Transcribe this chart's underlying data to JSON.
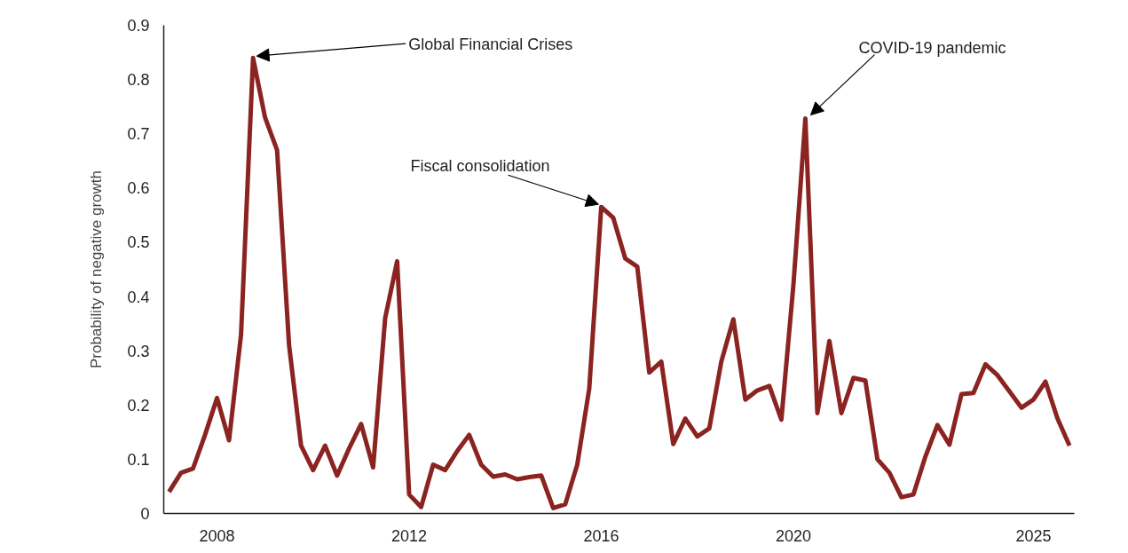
{
  "chart_data": {
    "type": "line",
    "ylabel": "Probability of negative growth",
    "x": [
      2007,
      2007.25,
      2007.5,
      2007.75,
      2008,
      2008.25,
      2008.5,
      2008.75,
      2009,
      2009.25,
      2009.5,
      2009.75,
      2010,
      2010.25,
      2010.5,
      2010.75,
      2011,
      2011.25,
      2011.5,
      2011.75,
      2012,
      2012.25,
      2012.5,
      2012.75,
      2013,
      2013.25,
      2013.5,
      2013.75,
      2014,
      2014.25,
      2014.5,
      2014.75,
      2015,
      2015.25,
      2015.5,
      2015.75,
      2016,
      2016.25,
      2016.5,
      2016.75,
      2017,
      2017.25,
      2017.5,
      2017.75,
      2018,
      2018.25,
      2018.5,
      2018.75,
      2019,
      2019.25,
      2019.5,
      2019.75,
      2020,
      2020.25,
      2020.5,
      2020.75,
      2021,
      2021.25,
      2021.5,
      2021.75,
      2022,
      2022.25,
      2022.5,
      2022.75,
      2023,
      2023.25,
      2023.5,
      2023.75,
      2024,
      2024.25,
      2024.5,
      2024.75,
      2025,
      2025.25,
      2025.5,
      2025.75
    ],
    "series": [
      {
        "color": "#8b2320",
        "values": [
          0.04,
          0.075,
          0.083,
          0.145,
          0.213,
          0.135,
          0.33,
          0.84,
          0.73,
          0.67,
          0.31,
          0.125,
          0.08,
          0.125,
          0.07,
          0.12,
          0.165,
          0.085,
          0.36,
          0.465,
          0.035,
          0.012,
          0.09,
          0.08,
          0.115,
          0.145,
          0.09,
          0.068,
          0.072,
          0.063,
          0.067,
          0.07,
          0.01,
          0.017,
          0.09,
          0.23,
          0.565,
          0.545,
          0.47,
          0.455,
          0.26,
          0.28,
          0.128,
          0.175,
          0.142,
          0.157,
          0.28,
          0.358,
          0.21,
          0.227,
          0.235,
          0.173,
          0.42,
          0.728,
          0.185,
          0.318,
          0.185,
          0.25,
          0.245,
          0.1,
          0.075,
          0.03,
          0.035,
          0.105,
          0.163,
          0.127,
          0.22,
          0.222,
          0.275,
          0.255,
          0.225,
          0.195,
          0.21,
          0.243,
          0.175,
          0.125
        ]
      }
    ],
    "xlim": [
      2006.89,
      2025.85
    ],
    "xticks": [
      2008,
      2012,
      2016,
      2020,
      2025
    ],
    "ylim": [
      0,
      0.9
    ],
    "yticks": [
      0,
      0.1,
      0.2,
      0.3,
      0.4,
      0.5,
      0.6,
      0.7,
      0.8,
      0.9
    ],
    "grid": false,
    "marker": "none",
    "line_style": "solid",
    "annotations": [
      {
        "text": "Global Financial Crises",
        "x": 2008.75,
        "y": 0.84
      },
      {
        "text": "Fiscal consolidation",
        "x": 2016,
        "y": 0.565
      },
      {
        "text": "COVID-19 pandemic",
        "x": 2020.25,
        "y": 0.728
      }
    ]
  }
}
